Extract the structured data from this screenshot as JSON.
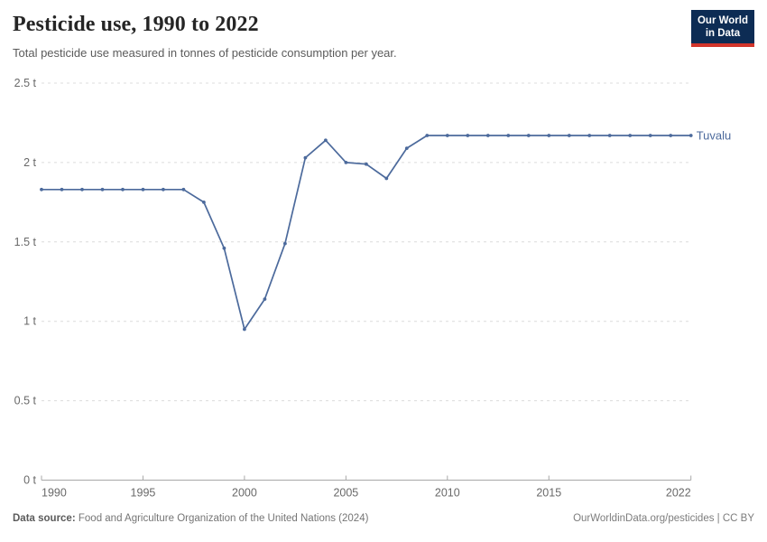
{
  "header": {
    "title": "Pesticide use, 1990 to 2022",
    "subtitle": "Total pesticide use measured in tonnes of pesticide consumption per year.",
    "logo": {
      "line1": "Our World",
      "line2": "in Data"
    }
  },
  "chart_data": {
    "type": "line",
    "title": "Pesticide use, 1990 to 2022",
    "subtitle": "Total pesticide use measured in tonnes of pesticide consumption per year.",
    "unit": "t",
    "x": [
      1990,
      1991,
      1992,
      1993,
      1994,
      1995,
      1996,
      1997,
      1998,
      1999,
      2000,
      2001,
      2002,
      2003,
      2004,
      2005,
      2006,
      2007,
      2008,
      2009,
      2010,
      2011,
      2012,
      2013,
      2014,
      2015,
      2016,
      2017,
      2018,
      2019,
      2020,
      2021,
      2022
    ],
    "series": [
      {
        "name": "Tuvalu",
        "color": "#4c6a9c",
        "values": [
          1.83,
          1.83,
          1.83,
          1.83,
          1.83,
          1.83,
          1.83,
          1.83,
          1.75,
          1.46,
          0.95,
          1.14,
          1.49,
          2.03,
          2.14,
          2.0,
          1.99,
          1.9,
          2.09,
          2.17,
          2.17,
          2.17,
          2.17,
          2.17,
          2.17,
          2.17,
          2.17,
          2.17,
          2.17,
          2.17,
          2.17,
          2.17,
          2.17
        ]
      }
    ],
    "xlabel": "",
    "ylabel": "",
    "xlim": [
      1990,
      2022
    ],
    "ylim": [
      0,
      2.5
    ],
    "yticks": [
      0,
      0.5,
      1,
      1.5,
      2,
      2.5
    ],
    "ytick_labels": [
      "0 t",
      "0.5 t",
      "1 t",
      "1.5 t",
      "2 t",
      "2.5 t"
    ],
    "xticks": [
      1990,
      1995,
      2000,
      2005,
      2010,
      2015,
      2022
    ],
    "xtick_labels": [
      "1990",
      "1995",
      "2000",
      "2005",
      "2010",
      "2015",
      "2022"
    ],
    "grid": "horizontal-dashed",
    "legend_position": "end-of-line-label",
    "marker": "dot"
  },
  "footer": {
    "source_label": "Data source:",
    "source_text": "Food and Agriculture Organization of the United Nations (2024)",
    "right_text": "OurWorldinData.org/pesticides | CC BY"
  },
  "colors": {
    "line": "#4c6a9c",
    "entity_label": "#4c6a9c",
    "grid": "#dcdcdc",
    "axis": "#a8a8a8",
    "tick_label": "#696969",
    "title": "#252525",
    "subtitle": "#5b5b5b",
    "logo_bg": "#0d2c54",
    "logo_accent": "#d2352b"
  }
}
